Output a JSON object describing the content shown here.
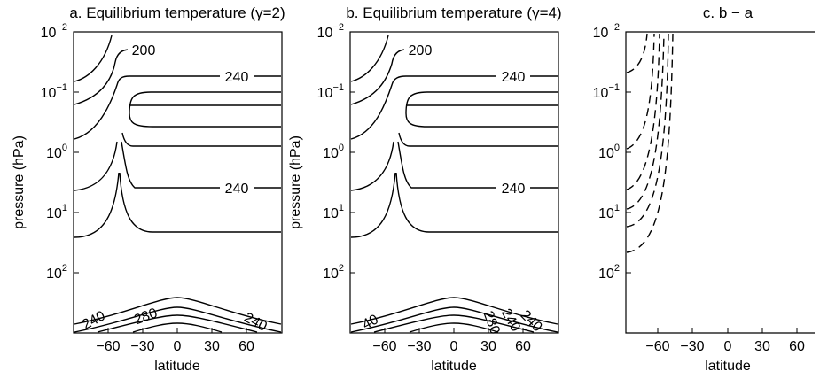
{
  "chart_data": [
    {
      "type": "contour",
      "title": "a. Equilibrium temperature (γ=2)",
      "xlabel": "latitude",
      "ylabel": "pressure (hPa)",
      "xlim": [
        -90,
        90
      ],
      "x_ticks": [
        -60,
        -30,
        0,
        30,
        60
      ],
      "x_tick_labels": [
        "−60",
        "−30",
        "0",
        "30",
        "60"
      ],
      "y_scale": "log",
      "y_inverted": true,
      "y_ticks": [
        {
          "base": "10",
          "exp": "−2"
        },
        {
          "base": "10",
          "exp": "−1"
        },
        {
          "base": "10",
          "exp": "0"
        },
        {
          "base": "10",
          "exp": "1"
        },
        {
          "base": "10",
          "exp": "2"
        }
      ],
      "contour_labels": [
        "200",
        "240",
        "240",
        "240",
        "280",
        "240"
      ]
    },
    {
      "type": "contour",
      "title": "b. Equilibrium temperature (γ=4)",
      "xlabel": "latitude",
      "ylabel": "pressure (hPa)",
      "xlim": [
        -90,
        90
      ],
      "x_ticks": [
        -60,
        -30,
        0,
        30,
        60
      ],
      "x_tick_labels": [
        "−60",
        "−30",
        "0",
        "30",
        "60"
      ],
      "y_scale": "log",
      "y_inverted": true,
      "y_ticks": [
        {
          "base": "10",
          "exp": "−2"
        },
        {
          "base": "10",
          "exp": "−1"
        },
        {
          "base": "10",
          "exp": "0"
        },
        {
          "base": "10",
          "exp": "1"
        },
        {
          "base": "10",
          "exp": "2"
        }
      ],
      "contour_labels": [
        "200",
        "240",
        "240",
        "240",
        "40",
        "280",
        "240"
      ]
    },
    {
      "type": "contour",
      "title": "c.  b − a",
      "xlabel": "latitude",
      "ylabel": "",
      "xlim": [
        -90,
        90
      ],
      "x_ticks": [
        -60,
        -30,
        0,
        30,
        60
      ],
      "x_tick_labels": [
        "−60",
        "−30",
        "0",
        "30",
        "60"
      ],
      "y_scale": "log",
      "y_inverted": true,
      "y_ticks": [
        {
          "base": "10",
          "exp": "−2"
        },
        {
          "base": "10",
          "exp": "−1"
        },
        {
          "base": "10",
          "exp": "0"
        },
        {
          "base": "10",
          "exp": "1"
        },
        {
          "base": "10",
          "exp": "2"
        }
      ],
      "negative_contours_dashed": true
    }
  ]
}
